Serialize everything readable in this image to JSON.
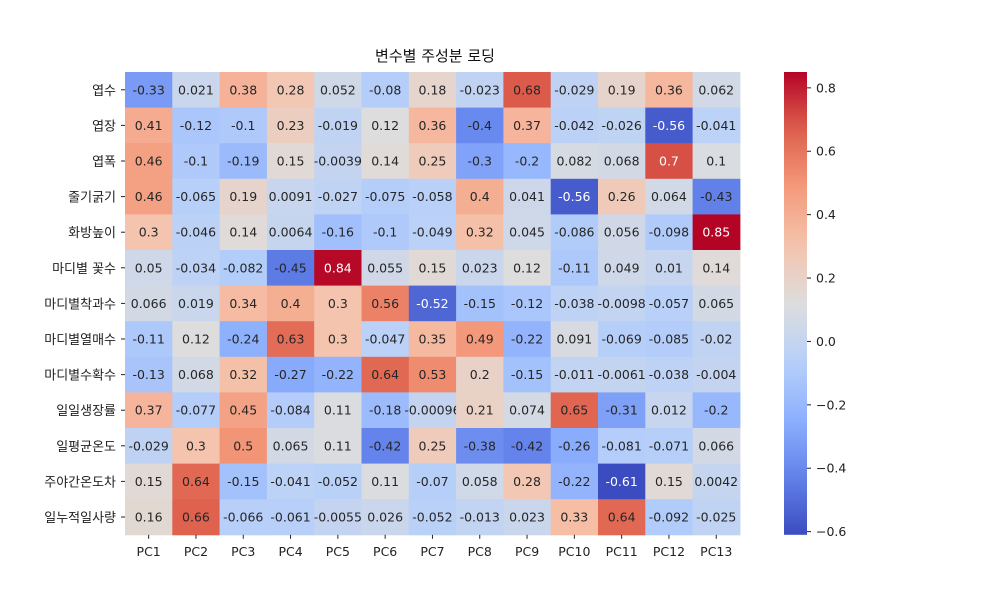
{
  "chart_data": {
    "type": "heatmap",
    "title": "변수별 주성분 로딩",
    "xlabel": "",
    "ylabel": "",
    "columns": [
      "PC1",
      "PC2",
      "PC3",
      "PC4",
      "PC5",
      "PC6",
      "PC7",
      "PC8",
      "PC9",
      "PC10",
      "PC11",
      "PC12",
      "PC13"
    ],
    "rows": [
      "엽수",
      "엽장",
      "엽폭",
      "줄기굵기",
      "화방높이",
      "마디별 꽃수",
      "마디별착과수",
      "마디별열매수",
      "마디별수확수",
      "일일생장률",
      "일평균온도",
      "주야간온도차",
      "일누적일사량"
    ],
    "values": [
      [
        -0.33,
        0.021,
        0.38,
        0.28,
        0.052,
        -0.08,
        0.18,
        -0.023,
        0.68,
        -0.029,
        0.19,
        0.36,
        0.062
      ],
      [
        0.41,
        -0.12,
        -0.1,
        0.23,
        -0.019,
        0.12,
        0.36,
        -0.4,
        0.37,
        -0.042,
        -0.026,
        -0.56,
        -0.041
      ],
      [
        0.46,
        -0.1,
        -0.19,
        0.15,
        -0.0039,
        0.14,
        0.25,
        -0.3,
        -0.2,
        0.082,
        0.068,
        0.7,
        0.1
      ],
      [
        0.46,
        -0.065,
        0.19,
        0.0091,
        -0.027,
        -0.075,
        -0.058,
        0.4,
        0.041,
        -0.56,
        0.26,
        0.064,
        -0.43
      ],
      [
        0.3,
        -0.046,
        0.14,
        0.0064,
        -0.16,
        -0.1,
        -0.049,
        0.32,
        0.045,
        -0.086,
        0.056,
        -0.098,
        0.85
      ],
      [
        0.05,
        -0.034,
        -0.082,
        -0.45,
        0.84,
        0.055,
        0.15,
        0.023,
        0.12,
        -0.11,
        0.049,
        0.01,
        0.14
      ],
      [
        0.066,
        0.019,
        0.34,
        0.4,
        0.3,
        0.56,
        -0.52,
        -0.15,
        -0.12,
        -0.038,
        -0.0098,
        -0.057,
        0.065
      ],
      [
        -0.11,
        0.12,
        -0.24,
        0.63,
        0.3,
        -0.047,
        0.35,
        0.49,
        -0.22,
        0.091,
        -0.069,
        -0.085,
        -0.02
      ],
      [
        -0.13,
        0.068,
        0.32,
        -0.27,
        -0.22,
        0.64,
        0.53,
        0.2,
        -0.15,
        -0.011,
        -0.0061,
        -0.038,
        -0.004
      ],
      [
        0.37,
        -0.077,
        0.45,
        -0.084,
        0.11,
        -0.18,
        -0.00096,
        0.21,
        0.074,
        0.65,
        -0.31,
        0.012,
        -0.2
      ],
      [
        -0.029,
        0.3,
        0.5,
        0.065,
        0.11,
        -0.42,
        0.25,
        -0.38,
        -0.42,
        -0.26,
        -0.081,
        -0.071,
        0.066
      ],
      [
        0.15,
        0.64,
        -0.15,
        -0.041,
        -0.052,
        0.11,
        -0.07,
        0.058,
        0.28,
        -0.22,
        -0.61,
        0.15,
        0.0042
      ],
      [
        0.16,
        0.66,
        -0.066,
        -0.061,
        -0.0055,
        0.026,
        -0.052,
        -0.013,
        0.023,
        0.33,
        0.64,
        -0.092,
        -0.025
      ]
    ],
    "cell_labels": [
      [
        "-0.33",
        "0.021",
        "0.38",
        "0.28",
        "0.052",
        "-0.08",
        "0.18",
        "-0.023",
        "0.68",
        "-0.029",
        "0.19",
        "0.36",
        "0.062"
      ],
      [
        "0.41",
        "-0.12",
        "-0.1",
        "0.23",
        "-0.019",
        "0.12",
        "0.36",
        "-0.4",
        "0.37",
        "-0.042",
        "-0.026",
        "-0.56",
        "-0.041"
      ],
      [
        "0.46",
        "-0.1",
        "-0.19",
        "0.15",
        "-0.0039",
        "0.14",
        "0.25",
        "-0.3",
        "-0.2",
        "0.082",
        "0.068",
        "0.7",
        "0.1"
      ],
      [
        "0.46",
        "-0.065",
        "0.19",
        "0.0091",
        "-0.027",
        "-0.075",
        "-0.058",
        "0.4",
        "0.041",
        "-0.56",
        "0.26",
        "0.064",
        "-0.43"
      ],
      [
        "0.3",
        "-0.046",
        "0.14",
        "0.0064",
        "-0.16",
        "-0.1",
        "-0.049",
        "0.32",
        "0.045",
        "-0.086",
        "0.056",
        "-0.098",
        "0.85"
      ],
      [
        "0.05",
        "-0.034",
        "-0.082",
        "-0.45",
        "0.84",
        "0.055",
        "0.15",
        "0.023",
        "0.12",
        "-0.11",
        "0.049",
        "0.01",
        "0.14"
      ],
      [
        "0.066",
        "0.019",
        "0.34",
        "0.4",
        "0.3",
        "0.56",
        "-0.52",
        "-0.15",
        "-0.12",
        "-0.038",
        "-0.0098",
        "-0.057",
        "0.065"
      ],
      [
        "-0.11",
        "0.12",
        "-0.24",
        "0.63",
        "0.3",
        "-0.047",
        "0.35",
        "0.49",
        "-0.22",
        "0.091",
        "-0.069",
        "-0.085",
        "-0.02"
      ],
      [
        "-0.13",
        "0.068",
        "0.32",
        "-0.27",
        "-0.22",
        "0.64",
        "0.53",
        "0.2",
        "-0.15",
        "-0.011",
        "-0.0061",
        "-0.038",
        "-0.004"
      ],
      [
        "0.37",
        "-0.077",
        "0.45",
        "-0.084",
        "0.11",
        "-0.18",
        "-0.00096",
        "0.21",
        "0.074",
        "0.65",
        "-0.31",
        "0.012",
        "-0.2"
      ],
      [
        "-0.029",
        "0.3",
        "0.5",
        "0.065",
        "0.11",
        "-0.42",
        "0.25",
        "-0.38",
        "-0.42",
        "-0.26",
        "-0.081",
        "-0.071",
        "0.066"
      ],
      [
        "0.15",
        "0.64",
        "-0.15",
        "-0.041",
        "-0.052",
        "0.11",
        "-0.07",
        "0.058",
        "0.28",
        "-0.22",
        "-0.61",
        "0.15",
        "0.0042"
      ],
      [
        "0.16",
        "0.66",
        "-0.066",
        "-0.061",
        "-0.0055",
        "0.026",
        "-0.052",
        "-0.013",
        "0.023",
        "0.33",
        "0.64",
        "-0.092",
        "-0.025"
      ]
    ],
    "colormap": "coolwarm",
    "vmin": -0.61,
    "vmax": 0.85,
    "colorbar_ticks": [
      -0.6,
      -0.4,
      -0.2,
      0.0,
      0.2,
      0.4,
      0.6,
      0.8
    ],
    "colorbar_tick_labels": [
      "−0.6",
      "−0.4",
      "−0.2",
      "0.0",
      "0.2",
      "0.4",
      "0.6",
      "0.8"
    ],
    "colors": {
      "cold": "#3b4cc0",
      "neutral": "#dddddd",
      "hot": "#b40426"
    }
  }
}
